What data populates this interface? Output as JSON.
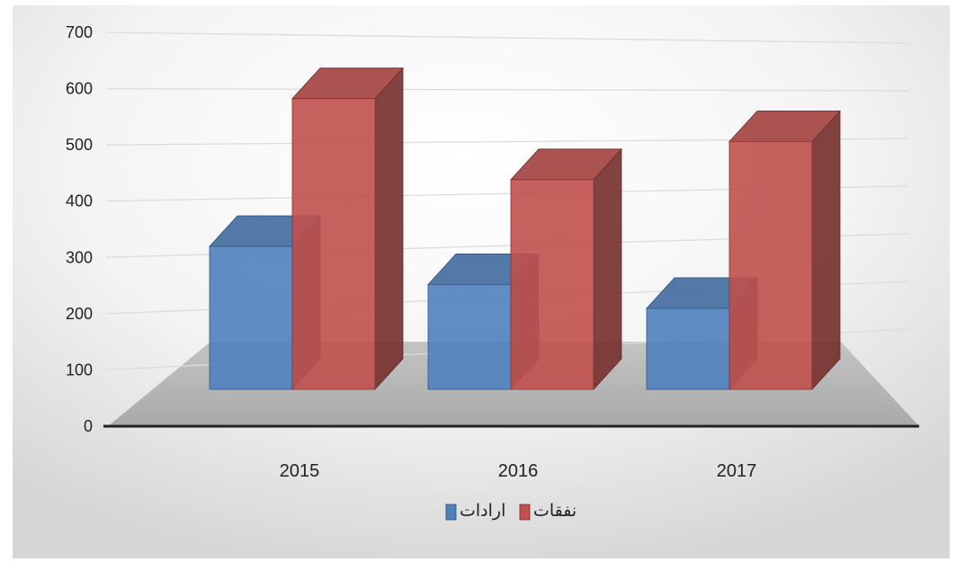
{
  "chart_data": {
    "type": "bar",
    "categories": [
      "2015",
      "2016",
      "2017"
    ],
    "series": [
      {
        "name": "ارادات",
        "values": [
          300,
          220,
          170
        ],
        "color": "#4f81bd"
      },
      {
        "name": "نفقات",
        "values": [
          610,
          440,
          520
        ],
        "color": "#c0504d"
      }
    ],
    "ylim": [
      0,
      700
    ],
    "yticks": [
      0,
      100,
      200,
      300,
      400,
      500,
      600,
      700
    ],
    "grid": true,
    "legend": "bottom",
    "style": "3d-clustered-column"
  }
}
